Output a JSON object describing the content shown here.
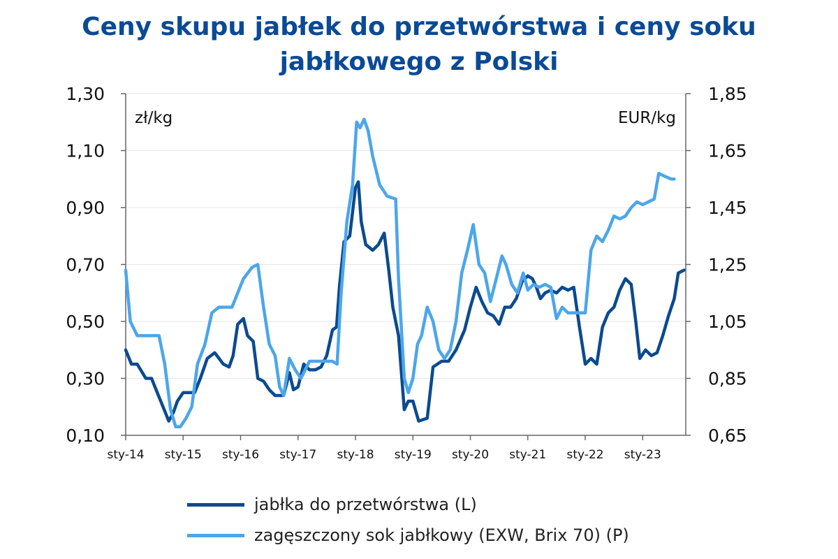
{
  "chart_data": {
    "type": "line",
    "title_line1": "Ceny skupu jabłek do przetwórstwa i ceny soku",
    "title_line2": "jabłkowego z Polski",
    "left_unit": "zł/kg",
    "right_unit": "EUR/kg",
    "left_ticks": [
      "1,30",
      "1,10",
      "0,90",
      "0,70",
      "0,50",
      "0,30",
      "0,10"
    ],
    "right_ticks": [
      "1,85",
      "1,65",
      "1,45",
      "1,25",
      "1,05",
      "0,85",
      "0,65"
    ],
    "x_ticks": [
      "sty-14",
      "sty-15",
      "sty-16",
      "sty-17",
      "sty-18",
      "sty-19",
      "sty-20",
      "sty-21",
      "sty-22",
      "sty-23"
    ],
    "ylim_left": [
      0.1,
      1.3
    ],
    "ylim_right": [
      0.65,
      1.85
    ],
    "xlim": [
      2014.0,
      2023.75
    ],
    "series": [
      {
        "name": "jabłka do przetwórstwa (L)",
        "axis": "left",
        "color": "#0b4a8f",
        "points": [
          [
            2014.0,
            0.4
          ],
          [
            2014.1,
            0.35
          ],
          [
            2014.2,
            0.35
          ],
          [
            2014.35,
            0.3
          ],
          [
            2014.45,
            0.3
          ],
          [
            2014.55,
            0.25
          ],
          [
            2014.65,
            0.2
          ],
          [
            2014.75,
            0.15
          ],
          [
            2014.83,
            0.18
          ],
          [
            2014.9,
            0.22
          ],
          [
            2015.0,
            0.25
          ],
          [
            2015.2,
            0.25
          ],
          [
            2015.3,
            0.3
          ],
          [
            2015.42,
            0.37
          ],
          [
            2015.55,
            0.39
          ],
          [
            2015.7,
            0.35
          ],
          [
            2015.8,
            0.34
          ],
          [
            2015.87,
            0.38
          ],
          [
            2015.95,
            0.49
          ],
          [
            2016.05,
            0.51
          ],
          [
            2016.12,
            0.45
          ],
          [
            2016.22,
            0.43
          ],
          [
            2016.3,
            0.3
          ],
          [
            2016.4,
            0.29
          ],
          [
            2016.5,
            0.26
          ],
          [
            2016.6,
            0.24
          ],
          [
            2016.75,
            0.24
          ],
          [
            2016.85,
            0.32
          ],
          [
            2016.92,
            0.26
          ],
          [
            2017.0,
            0.27
          ],
          [
            2017.1,
            0.35
          ],
          [
            2017.2,
            0.33
          ],
          [
            2017.3,
            0.33
          ],
          [
            2017.4,
            0.34
          ],
          [
            2017.5,
            0.38
          ],
          [
            2017.6,
            0.47
          ],
          [
            2017.67,
            0.48
          ],
          [
            2017.72,
            0.62
          ],
          [
            2017.8,
            0.78
          ],
          [
            2017.9,
            0.8
          ],
          [
            2018.0,
            0.97
          ],
          [
            2018.05,
            0.99
          ],
          [
            2018.1,
            0.85
          ],
          [
            2018.18,
            0.77
          ],
          [
            2018.3,
            0.75
          ],
          [
            2018.4,
            0.77
          ],
          [
            2018.5,
            0.81
          ],
          [
            2018.58,
            0.68
          ],
          [
            2018.65,
            0.55
          ],
          [
            2018.75,
            0.45
          ],
          [
            2018.85,
            0.19
          ],
          [
            2018.92,
            0.22
          ],
          [
            2019.0,
            0.22
          ],
          [
            2019.1,
            0.15
          ],
          [
            2019.25,
            0.16
          ],
          [
            2019.35,
            0.34
          ],
          [
            2019.5,
            0.36
          ],
          [
            2019.62,
            0.36
          ],
          [
            2019.75,
            0.4
          ],
          [
            2019.9,
            0.47
          ],
          [
            2020.0,
            0.55
          ],
          [
            2020.1,
            0.62
          ],
          [
            2020.2,
            0.57
          ],
          [
            2020.3,
            0.53
          ],
          [
            2020.4,
            0.52
          ],
          [
            2020.5,
            0.49
          ],
          [
            2020.6,
            0.55
          ],
          [
            2020.7,
            0.55
          ],
          [
            2020.8,
            0.58
          ],
          [
            2020.9,
            0.64
          ],
          [
            2021.0,
            0.66
          ],
          [
            2021.08,
            0.65
          ],
          [
            2021.15,
            0.62
          ],
          [
            2021.22,
            0.58
          ],
          [
            2021.3,
            0.6
          ],
          [
            2021.4,
            0.61
          ],
          [
            2021.5,
            0.6
          ],
          [
            2021.6,
            0.62
          ],
          [
            2021.7,
            0.61
          ],
          [
            2021.8,
            0.62
          ],
          [
            2021.9,
            0.48
          ],
          [
            2022.0,
            0.35
          ],
          [
            2022.1,
            0.37
          ],
          [
            2022.2,
            0.35
          ],
          [
            2022.3,
            0.48
          ],
          [
            2022.4,
            0.53
          ],
          [
            2022.5,
            0.55
          ],
          [
            2022.6,
            0.61
          ],
          [
            2022.7,
            0.65
          ],
          [
            2022.8,
            0.63
          ],
          [
            2022.88,
            0.5
          ],
          [
            2022.95,
            0.37
          ],
          [
            2023.05,
            0.4
          ],
          [
            2023.15,
            0.38
          ],
          [
            2023.25,
            0.39
          ],
          [
            2023.35,
            0.45
          ],
          [
            2023.45,
            0.52
          ],
          [
            2023.55,
            0.58
          ],
          [
            2023.62,
            0.67
          ],
          [
            2023.72,
            0.68
          ]
        ]
      },
      {
        "name": "zagęszczony sok jabłkowy (EXW, Brix 70) (P)",
        "axis": "right",
        "color": "#4ca6ea",
        "points": [
          [
            2014.0,
            1.23
          ],
          [
            2014.08,
            1.05
          ],
          [
            2014.2,
            1.0
          ],
          [
            2014.3,
            1.0
          ],
          [
            2014.42,
            1.0
          ],
          [
            2014.5,
            1.0
          ],
          [
            2014.58,
            1.0
          ],
          [
            2014.68,
            0.9
          ],
          [
            2014.78,
            0.74
          ],
          [
            2014.87,
            0.68
          ],
          [
            2014.95,
            0.68
          ],
          [
            2015.05,
            0.71
          ],
          [
            2015.15,
            0.75
          ],
          [
            2015.25,
            0.9
          ],
          [
            2015.38,
            0.97
          ],
          [
            2015.5,
            1.08
          ],
          [
            2015.62,
            1.1
          ],
          [
            2015.75,
            1.1
          ],
          [
            2015.85,
            1.1
          ],
          [
            2015.95,
            1.15
          ],
          [
            2016.05,
            1.2
          ],
          [
            2016.2,
            1.24
          ],
          [
            2016.3,
            1.25
          ],
          [
            2016.4,
            1.1
          ],
          [
            2016.5,
            0.97
          ],
          [
            2016.6,
            0.93
          ],
          [
            2016.68,
            0.82
          ],
          [
            2016.75,
            0.79
          ],
          [
            2016.85,
            0.92
          ],
          [
            2016.95,
            0.88
          ],
          [
            2017.05,
            0.85
          ],
          [
            2017.2,
            0.91
          ],
          [
            2017.4,
            0.91
          ],
          [
            2017.6,
            0.91
          ],
          [
            2017.68,
            0.9
          ],
          [
            2017.75,
            1.15
          ],
          [
            2017.85,
            1.4
          ],
          [
            2017.95,
            1.53
          ],
          [
            2018.02,
            1.75
          ],
          [
            2018.08,
            1.73
          ],
          [
            2018.15,
            1.76
          ],
          [
            2018.22,
            1.72
          ],
          [
            2018.3,
            1.63
          ],
          [
            2018.42,
            1.53
          ],
          [
            2018.55,
            1.49
          ],
          [
            2018.7,
            1.48
          ],
          [
            2018.75,
            1.2
          ],
          [
            2018.85,
            0.85
          ],
          [
            2018.92,
            0.8
          ],
          [
            2019.0,
            0.85
          ],
          [
            2019.08,
            0.97
          ],
          [
            2019.15,
            1.0
          ],
          [
            2019.25,
            1.1
          ],
          [
            2019.35,
            1.05
          ],
          [
            2019.45,
            0.95
          ],
          [
            2019.55,
            0.92
          ],
          [
            2019.65,
            0.95
          ],
          [
            2019.75,
            1.05
          ],
          [
            2019.85,
            1.22
          ],
          [
            2019.95,
            1.3
          ],
          [
            2020.05,
            1.39
          ],
          [
            2020.15,
            1.25
          ],
          [
            2020.25,
            1.22
          ],
          [
            2020.35,
            1.12
          ],
          [
            2020.45,
            1.2
          ],
          [
            2020.55,
            1.28
          ],
          [
            2020.62,
            1.25
          ],
          [
            2020.72,
            1.18
          ],
          [
            2020.82,
            1.15
          ],
          [
            2020.92,
            1.22
          ],
          [
            2021.0,
            1.16
          ],
          [
            2021.1,
            1.18
          ],
          [
            2021.2,
            1.17
          ],
          [
            2021.3,
            1.18
          ],
          [
            2021.4,
            1.17
          ],
          [
            2021.5,
            1.06
          ],
          [
            2021.6,
            1.1
          ],
          [
            2021.7,
            1.08
          ],
          [
            2021.8,
            1.08
          ],
          [
            2021.9,
            1.08
          ],
          [
            2022.0,
            1.08
          ],
          [
            2022.1,
            1.3
          ],
          [
            2022.2,
            1.35
          ],
          [
            2022.3,
            1.33
          ],
          [
            2022.4,
            1.37
          ],
          [
            2022.5,
            1.42
          ],
          [
            2022.6,
            1.41
          ],
          [
            2022.7,
            1.42
          ],
          [
            2022.8,
            1.45
          ],
          [
            2022.9,
            1.47
          ],
          [
            2023.0,
            1.46
          ],
          [
            2023.1,
            1.47
          ],
          [
            2023.2,
            1.48
          ],
          [
            2023.28,
            1.57
          ],
          [
            2023.38,
            1.56
          ],
          [
            2023.5,
            1.55
          ],
          [
            2023.55,
            1.55
          ]
        ]
      }
    ]
  }
}
